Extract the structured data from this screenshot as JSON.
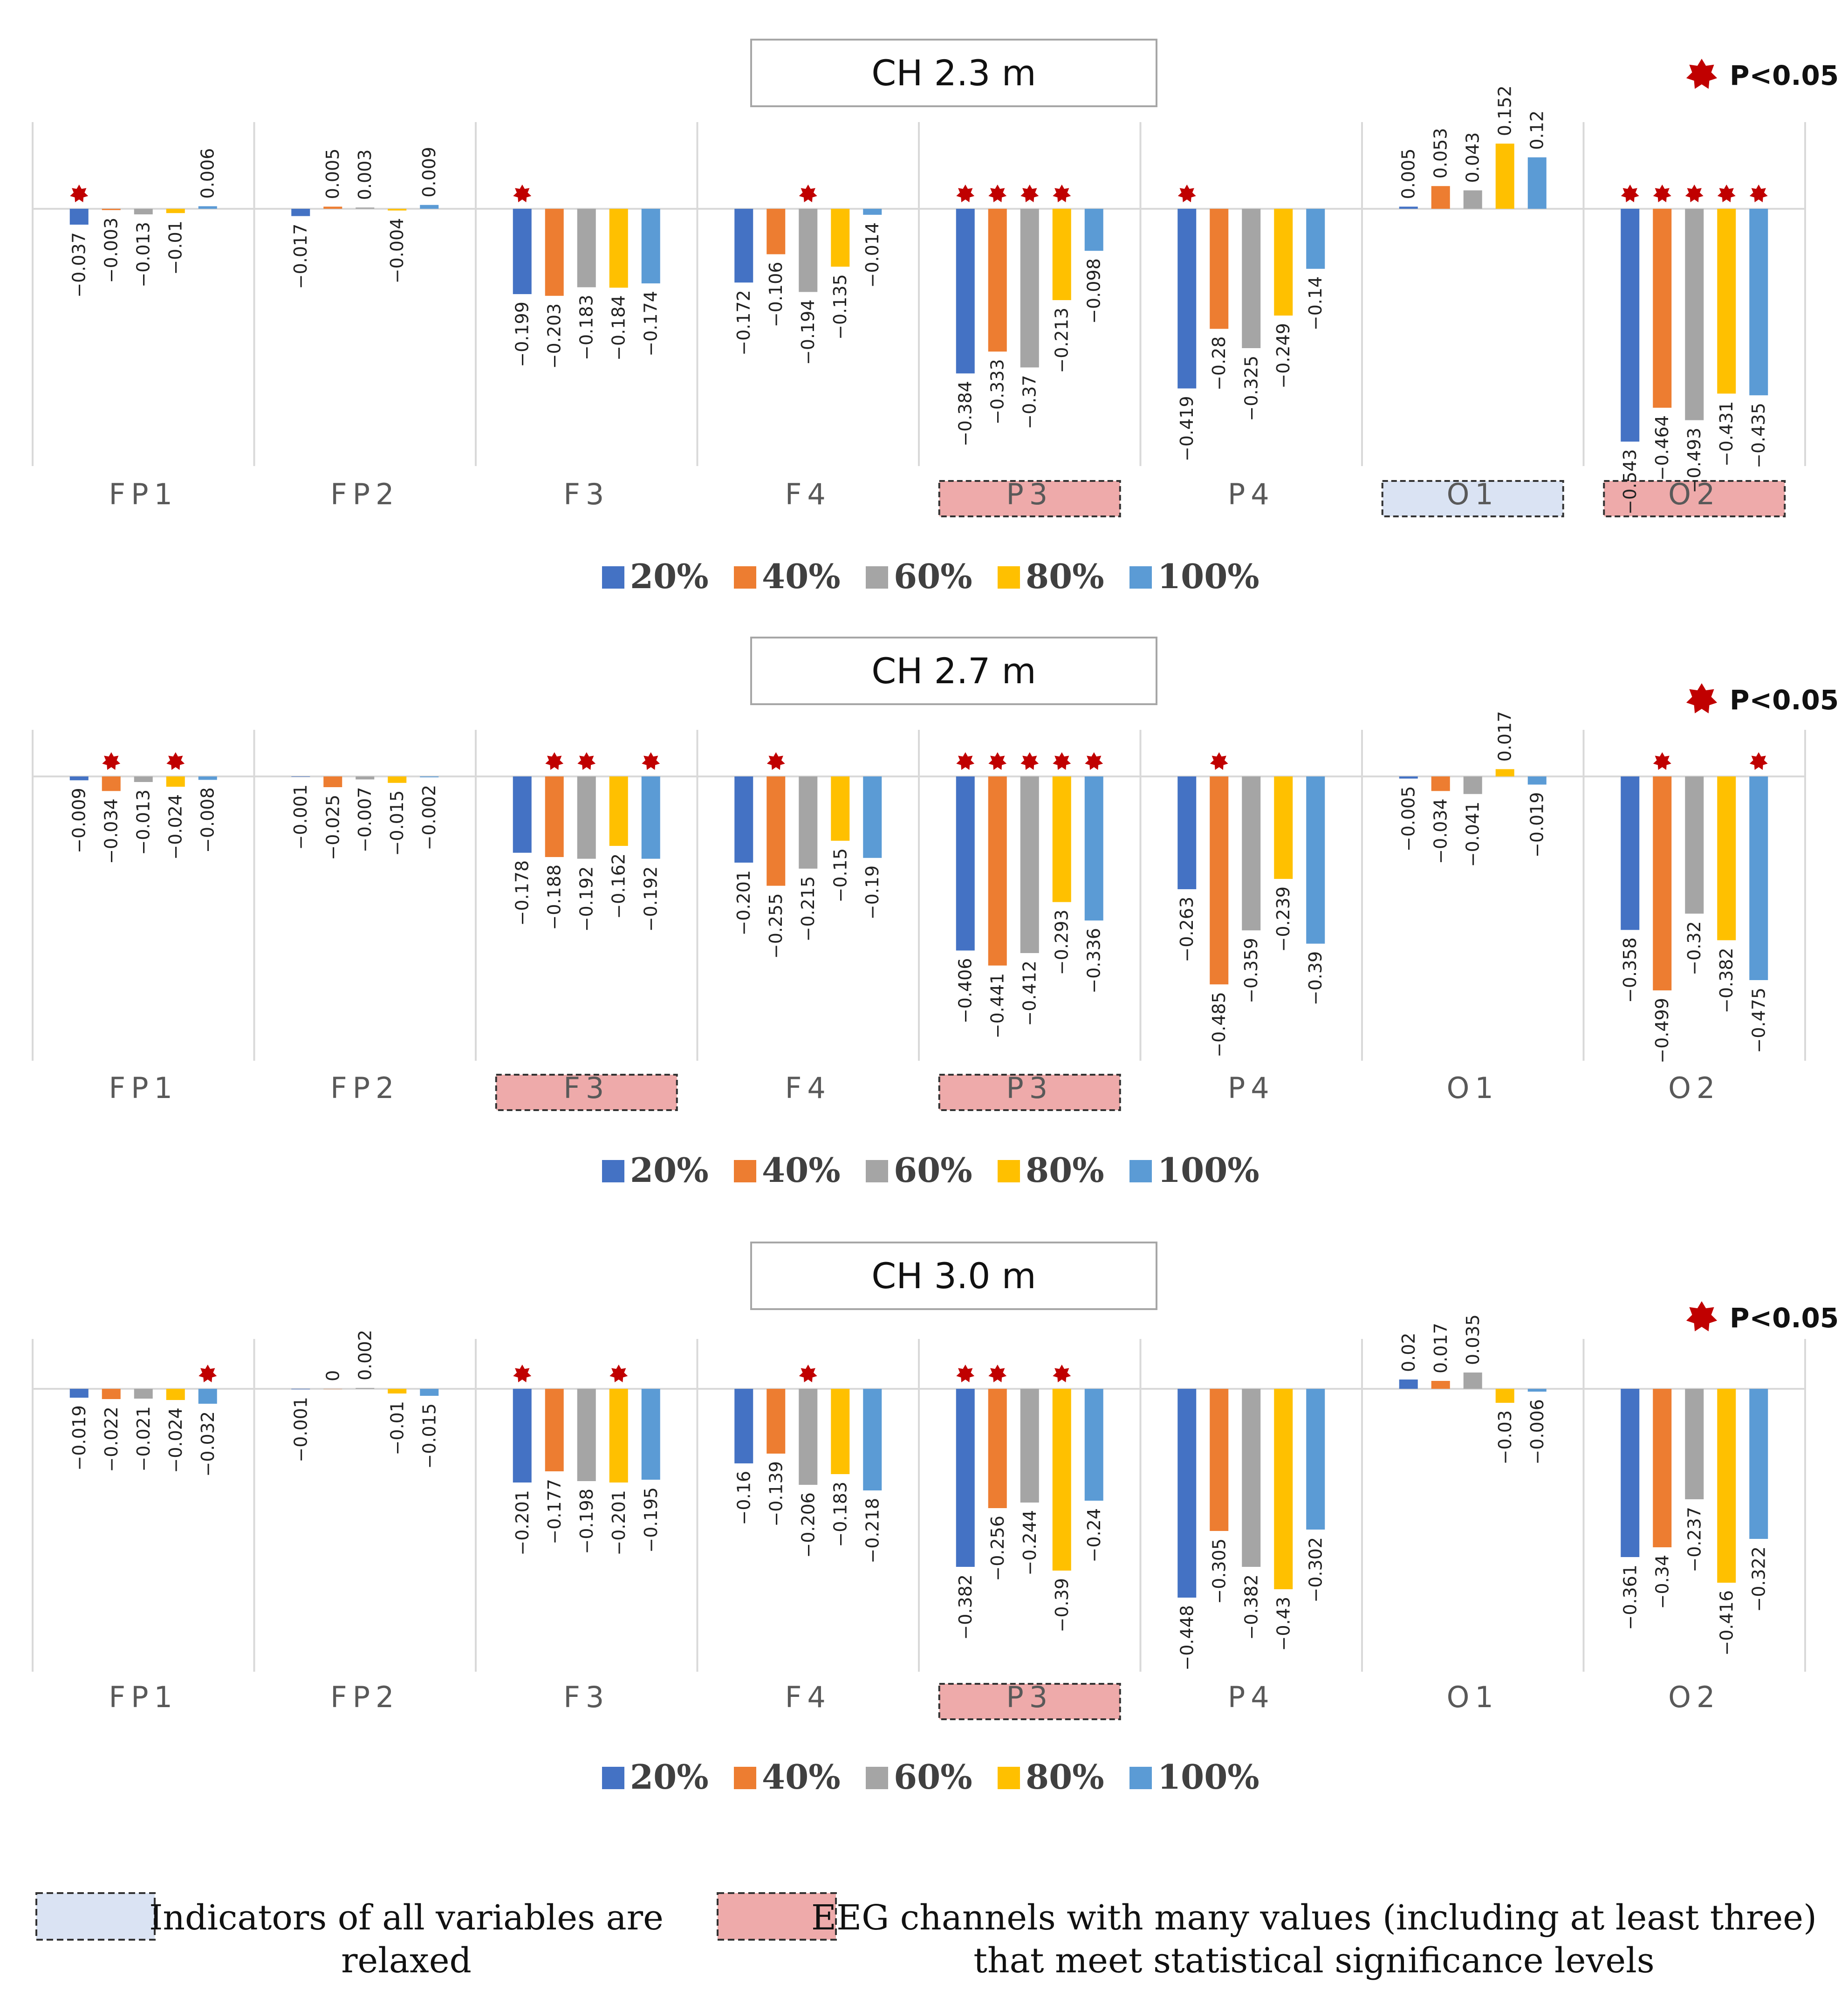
{
  "colors": {
    "series": [
      "#4472C4",
      "#ED7D31",
      "#A5A5A5",
      "#FFC000",
      "#5B9BD5"
    ],
    "star": "#C00000",
    "relaxed_fill": "#DAE3F3",
    "significant_fill": "#EEAAAA"
  },
  "significance_label": "P<0.05",
  "legend_key": {
    "relaxed_text": [
      "Indicators of all variables are",
      "relaxed"
    ],
    "significant_text": [
      "EEG channels with many values (including at least three)",
      "that meet statistical significance levels"
    ]
  },
  "chart_data": [
    {
      "type": "bar",
      "title": "CH 2.3 m",
      "categories": [
        "FP1",
        "FP2",
        "F3",
        "F4",
        "P3",
        "P4",
        "O1",
        "O2"
      ],
      "series": [
        {
          "name": "20%",
          "values": [
            -0.037,
            -0.017,
            -0.199,
            -0.172,
            -0.384,
            -0.419,
            0.005,
            -0.543
          ]
        },
        {
          "name": "40%",
          "values": [
            -0.003,
            0.005,
            -0.203,
            -0.106,
            -0.333,
            -0.28,
            0.053,
            -0.464
          ]
        },
        {
          "name": "60%",
          "values": [
            -0.013,
            0.003,
            -0.183,
            -0.194,
            -0.37,
            -0.325,
            0.043,
            -0.493
          ]
        },
        {
          "name": "80%",
          "values": [
            -0.01,
            -0.004,
            -0.184,
            -0.135,
            -0.213,
            -0.249,
            0.152,
            -0.431
          ]
        },
        {
          "name": "100%",
          "values": [
            0.006,
            0.009,
            -0.174,
            -0.014,
            -0.098,
            -0.14,
            0.12,
            -0.435
          ]
        }
      ],
      "significant": [
        [
          0,
          0
        ],
        [
          2,
          0
        ],
        [
          3,
          2
        ],
        [
          4,
          0
        ],
        [
          4,
          1
        ],
        [
          4,
          2
        ],
        [
          4,
          3
        ],
        [
          5,
          0
        ],
        [
          7,
          0
        ],
        [
          7,
          1
        ],
        [
          7,
          2
        ],
        [
          7,
          3
        ],
        [
          7,
          4
        ]
      ],
      "highlight": {
        "O1": "relaxed",
        "P3": "significant",
        "O2": "significant"
      },
      "ylim": [
        -0.6,
        0.2
      ]
    },
    {
      "type": "bar",
      "title": "CH 2.7 m",
      "categories": [
        "FP1",
        "FP2",
        "F3",
        "F4",
        "P3",
        "P4",
        "O1",
        "O2"
      ],
      "series": [
        {
          "name": "20%",
          "values": [
            -0.009,
            -0.001,
            -0.178,
            -0.201,
            -0.406,
            -0.263,
            -0.005,
            -0.358
          ]
        },
        {
          "name": "40%",
          "values": [
            -0.034,
            -0.025,
            -0.188,
            -0.255,
            -0.441,
            -0.485,
            -0.034,
            -0.499
          ]
        },
        {
          "name": "60%",
          "values": [
            -0.013,
            -0.007,
            -0.192,
            -0.215,
            -0.412,
            -0.359,
            -0.041,
            -0.32
          ]
        },
        {
          "name": "80%",
          "values": [
            -0.024,
            -0.015,
            -0.162,
            -0.15,
            -0.293,
            -0.239,
            0.017,
            -0.382
          ]
        },
        {
          "name": "100%",
          "values": [
            -0.008,
            -0.002,
            -0.192,
            -0.19,
            -0.336,
            -0.39,
            -0.019,
            -0.475
          ]
        }
      ],
      "significant": [
        [
          0,
          1
        ],
        [
          0,
          3
        ],
        [
          2,
          1
        ],
        [
          2,
          2
        ],
        [
          2,
          4
        ],
        [
          3,
          1
        ],
        [
          4,
          0
        ],
        [
          4,
          1
        ],
        [
          4,
          2
        ],
        [
          4,
          3
        ],
        [
          4,
          4
        ],
        [
          5,
          1
        ],
        [
          7,
          1
        ],
        [
          7,
          4
        ]
      ],
      "highlight": {
        "F3": "significant",
        "P3": "significant"
      },
      "ylim": [
        -0.6,
        0.1
      ]
    },
    {
      "type": "bar",
      "title": "CH 3.0 m",
      "categories": [
        "FP1",
        "FP2",
        "F3",
        "F4",
        "P3",
        "P4",
        "O1",
        "O2"
      ],
      "series": [
        {
          "name": "20%",
          "values": [
            -0.019,
            -0.001,
            -0.201,
            -0.16,
            -0.382,
            -0.448,
            0.02,
            -0.361
          ]
        },
        {
          "name": "40%",
          "values": [
            -0.022,
            0,
            -0.177,
            -0.139,
            -0.256,
            -0.305,
            0.017,
            -0.34
          ]
        },
        {
          "name": "60%",
          "values": [
            -0.021,
            0.002,
            -0.198,
            -0.206,
            -0.244,
            -0.382,
            0.035,
            -0.237
          ]
        },
        {
          "name": "80%",
          "values": [
            -0.024,
            -0.01,
            -0.201,
            -0.183,
            -0.39,
            -0.43,
            -0.03,
            -0.416
          ]
        },
        {
          "name": "100%",
          "values": [
            -0.032,
            -0.015,
            -0.195,
            -0.218,
            -0.24,
            -0.302,
            -0.006,
            -0.322
          ]
        }
      ],
      "significant": [
        [
          0,
          4
        ],
        [
          2,
          0
        ],
        [
          2,
          3
        ],
        [
          3,
          2
        ],
        [
          4,
          0
        ],
        [
          4,
          1
        ],
        [
          4,
          3
        ]
      ],
      "highlight": {
        "P3": "significant"
      },
      "ylim": [
        -0.5,
        0.1
      ]
    }
  ]
}
